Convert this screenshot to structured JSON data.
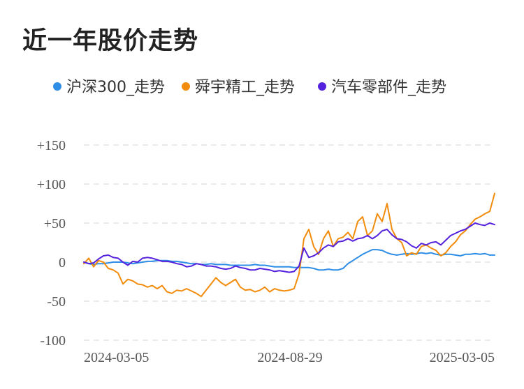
{
  "chart_data": {
    "type": "line",
    "title": "近一年股价走势",
    "x_tick_labels": [
      "2024-03-05",
      "2024-08-29",
      "2025-03-05"
    ],
    "y_tick_labels": [
      "+150",
      "+100",
      "+50",
      "0",
      "-50",
      "-100"
    ],
    "y_ticks": [
      150,
      100,
      50,
      0,
      -50,
      -100
    ],
    "ylim": [
      -100,
      150
    ],
    "grid": true,
    "legend_position": "top",
    "series": [
      {
        "name": "沪深300_走势",
        "color": "#2e8de6",
        "values": [
          0,
          -2,
          -3,
          -2,
          -2,
          -1,
          0,
          0,
          0,
          -1,
          -2,
          -1,
          0,
          1,
          1,
          2,
          2,
          2,
          1,
          1,
          0,
          -1,
          -2,
          -2,
          -3,
          -3,
          -2,
          -3,
          -3,
          -3,
          -4,
          -4,
          -4,
          -4,
          -4,
          -3,
          -4,
          -4,
          -5,
          -6,
          -6,
          -6,
          -6,
          -7,
          -7,
          -7,
          -7,
          -8,
          -10,
          -10,
          -9,
          -10,
          -10,
          -8,
          -2,
          2,
          6,
          10,
          13,
          16,
          16,
          15,
          12,
          10,
          9,
          10,
          11,
          10,
          11,
          12,
          11,
          12,
          10,
          9,
          10,
          10,
          9,
          8,
          10,
          10,
          11,
          10,
          11,
          9,
          9
        ]
      },
      {
        "name": "舜宇精工_走势",
        "color": "#f28c0c",
        "values": [
          -2,
          5,
          -6,
          2,
          0,
          -8,
          -10,
          -14,
          -28,
          -22,
          -24,
          -28,
          -29,
          -32,
          -30,
          -34,
          -30,
          -38,
          -40,
          -36,
          -37,
          -34,
          -37,
          -40,
          -44,
          -36,
          -28,
          -20,
          -26,
          -30,
          -26,
          -22,
          -32,
          -36,
          -35,
          -38,
          -36,
          -32,
          -38,
          -34,
          -36,
          -37,
          -36,
          -34,
          -15,
          30,
          42,
          20,
          10,
          30,
          40,
          20,
          30,
          32,
          38,
          30,
          52,
          58,
          34,
          40,
          62,
          52,
          75,
          42,
          30,
          25,
          8,
          12,
          10,
          20,
          22,
          18,
          15,
          8,
          12,
          20,
          26,
          35,
          40,
          48,
          55,
          58,
          62,
          65,
          88
        ]
      },
      {
        "name": "汽车零部件_走势",
        "color": "#5522dd",
        "values": [
          0,
          -2,
          -1,
          4,
          8,
          9,
          6,
          5,
          0,
          -4,
          1,
          0,
          5,
          6,
          5,
          3,
          1,
          1,
          0,
          -2,
          -3,
          -6,
          -5,
          -2,
          -3,
          -5,
          -5,
          -6,
          -8,
          -9,
          -8,
          -5,
          -7,
          -8,
          -10,
          -10,
          -8,
          -9,
          -10,
          -12,
          -11,
          -12,
          -13,
          -12,
          -5,
          18,
          6,
          8,
          12,
          18,
          22,
          20,
          26,
          27,
          30,
          27,
          30,
          31,
          34,
          30,
          34,
          40,
          42,
          35,
          30,
          29,
          26,
          21,
          18,
          24,
          22,
          25,
          26,
          22,
          28,
          34,
          37,
          40,
          42,
          46,
          50,
          48,
          47,
          50,
          48
        ]
      }
    ]
  }
}
